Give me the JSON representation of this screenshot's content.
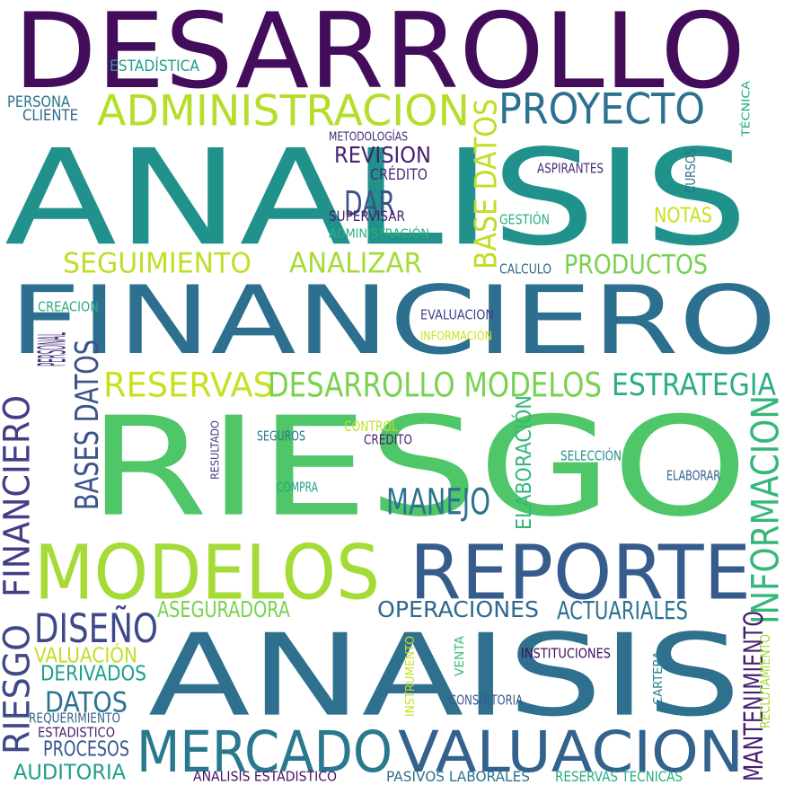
{
  "words": [
    {
      "text": "DESARROLLO",
      "color": "#440d5c"
    },
    {
      "text": "ANALISIS",
      "color": "#21918c"
    },
    {
      "text": "FINANCIERO",
      "color": "#2c6f8e"
    },
    {
      "text": "RIESGO",
      "color": "#4fc668"
    },
    {
      "text": "ANAISIS",
      "color": "#2e708e"
    },
    {
      "text": "MODELOS",
      "color": "#a5db36"
    },
    {
      "text": "REPORTE",
      "color": "#365c8d"
    },
    {
      "text": "MERCADO",
      "color": "#29798e"
    },
    {
      "text": "VALUACION",
      "color": "#33638d"
    },
    {
      "text": "ADMINISTRACION",
      "color": "#b5de2b"
    },
    {
      "text": "PROYECTO",
      "color": "#2c728e"
    },
    {
      "text": "RESERVAS",
      "color": "#c8e020"
    },
    {
      "text": "DESARROLLO MODELOS",
      "color": "#7ad151"
    },
    {
      "text": "ESTRATEGIA",
      "color": "#28ae80"
    },
    {
      "text": "PERSONAL",
      "color": "#46327e"
    },
    {
      "text": "BASES DATOS",
      "color": "#3b528b"
    },
    {
      "text": "FINANCIERO",
      "color": "#433e85"
    },
    {
      "text": "RIESGO",
      "color": "#3e4989"
    },
    {
      "text": "BASE DATOS",
      "color": "#bddf26"
    },
    {
      "text": "INFORMACION",
      "color": "#35b779"
    },
    {
      "text": "MANTENIMIENTO",
      "color": "#481f70"
    },
    {
      "text": "SEGUIMIENTO",
      "color": "#bddf26"
    },
    {
      "text": "ANALIZAR",
      "color": "#a5db36"
    },
    {
      "text": "PRODUCTOS",
      "color": "#7ad151"
    },
    {
      "text": "REVISION",
      "color": "#481f70"
    },
    {
      "text": "DAR",
      "color": "#3b528b"
    },
    {
      "text": "MANEJO",
      "color": "#2c728e"
    },
    {
      "text": "ELABORACIÓN",
      "color": "#35b779"
    },
    {
      "text": "DISEÑO",
      "color": "#3e4989"
    },
    {
      "text": "OPERACIONES",
      "color": "#31688e"
    },
    {
      "text": "ACTUARIALES",
      "color": "#2c728e"
    },
    {
      "text": "ASEGURADORA",
      "color": "#7ad151"
    },
    {
      "text": "DATOS",
      "color": "#2c728e"
    },
    {
      "text": "PROCESOS",
      "color": "#39568c"
    },
    {
      "text": "AUDITORIA",
      "color": "#1f9e89"
    },
    {
      "text": "VALUACIÓN",
      "color": "#c2df23"
    },
    {
      "text": "DERIVADOS",
      "color": "#1f9e89"
    },
    {
      "text": "NOTAS",
      "color": "#c8e020"
    },
    {
      "text": "ESTADÍSTICA",
      "color": "#1f9e89"
    },
    {
      "text": "PERSONA",
      "color": "#2c728e"
    },
    {
      "text": "CLIENTE",
      "color": "#31688e"
    },
    {
      "text": "METODOLOGÍAS",
      "color": "#472d7b"
    },
    {
      "text": "CRÉDITO",
      "color": "#472d7b"
    },
    {
      "text": "SUPERVISAR",
      "color": "#481f70"
    },
    {
      "text": "ADMINISTRACIÓN",
      "color": "#2ab07f"
    },
    {
      "text": "ASPIRANTES",
      "color": "#472d7b"
    },
    {
      "text": "GESTIÓN",
      "color": "#26ad81"
    },
    {
      "text": "CURSOS",
      "color": "#2c728e"
    },
    {
      "text": "TÉCNICA",
      "color": "#22a884"
    },
    {
      "text": "CALCULO",
      "color": "#31688e"
    },
    {
      "text": "CREACION",
      "color": "#27ad81"
    },
    {
      "text": "EVALUACION",
      "color": "#414487"
    },
    {
      "text": "INFORMACIÓN",
      "color": "#d2e21b"
    },
    {
      "text": "CONTROL",
      "color": "#c2df23"
    },
    {
      "text": "CREDITO",
      "color": "#481f70"
    },
    {
      "text": "SEGUROS",
      "color": "#2a788e"
    },
    {
      "text": "RESULTADO",
      "color": "#433e85"
    },
    {
      "text": "SELECCIÓN",
      "color": "#21918c"
    },
    {
      "text": "ELABORAR",
      "color": "#33638d"
    },
    {
      "text": "COMPRA",
      "color": "#1fa187"
    },
    {
      "text": "INSTRUMENTO",
      "color": "#c8e020"
    },
    {
      "text": "VENTA",
      "color": "#3bbb75"
    },
    {
      "text": "INSTITUCIONES",
      "color": "#440d5c"
    },
    {
      "text": "CARTERA",
      "color": "#26828e"
    },
    {
      "text": "RECLUTAMIENTO",
      "color": "#a5db36"
    },
    {
      "text": "CONSULTORIA",
      "color": "#39568c"
    },
    {
      "text": "REQUERIMIENTO",
      "color": "#33638d"
    },
    {
      "text": "ESTADISTICO",
      "color": "#481f70"
    },
    {
      "text": "ANALISIS ESTADISTICO",
      "color": "#471164"
    },
    {
      "text": "PASIVOS LABORALES",
      "color": "#2c728e"
    },
    {
      "text": "RESERVAS TECNICAS",
      "color": "#27ad81"
    }
  ]
}
